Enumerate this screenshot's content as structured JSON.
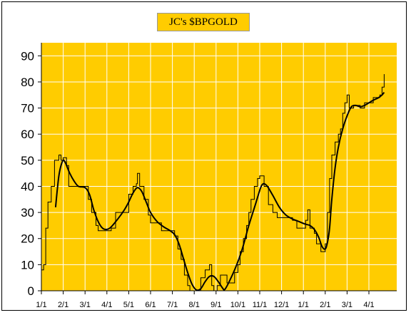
{
  "chart_data": {
    "type": "line",
    "title": "JC's $BPGOLD",
    "xlabel": "",
    "ylabel": "",
    "ylim": [
      0,
      95
    ],
    "yticks": [
      0,
      10,
      20,
      30,
      40,
      50,
      60,
      70,
      80,
      90
    ],
    "xticklabels": [
      "1/1",
      "2/1",
      "3/1",
      "4/1",
      "5/1",
      "6/1",
      "7/1",
      "8/1",
      "9/1",
      "10/1",
      "11/1",
      "12/1",
      "1/1",
      "2/1",
      "3/1",
      "4/1"
    ],
    "grid": true,
    "legend": "none",
    "series": [
      {
        "style": "step",
        "color": "#000000",
        "points": [
          [
            0.0,
            8
          ],
          [
            0.1,
            10
          ],
          [
            0.2,
            24
          ],
          [
            0.3,
            34
          ],
          [
            0.45,
            40
          ],
          [
            0.6,
            50
          ],
          [
            0.75,
            50
          ],
          [
            0.8,
            52
          ],
          [
            0.9,
            50
          ],
          [
            1.0,
            51
          ],
          [
            1.15,
            48
          ],
          [
            1.25,
            40
          ],
          [
            1.5,
            40
          ],
          [
            1.8,
            40
          ],
          [
            2.0,
            40
          ],
          [
            2.15,
            35
          ],
          [
            2.3,
            30
          ],
          [
            2.5,
            25
          ],
          [
            2.6,
            23
          ],
          [
            3.0,
            23
          ],
          [
            3.2,
            24
          ],
          [
            3.4,
            30
          ],
          [
            3.6,
            30
          ],
          [
            3.8,
            30
          ],
          [
            4.0,
            37
          ],
          [
            4.2,
            40
          ],
          [
            4.35,
            41
          ],
          [
            4.4,
            45
          ],
          [
            4.5,
            40
          ],
          [
            4.7,
            35
          ],
          [
            4.9,
            29
          ],
          [
            5.0,
            26
          ],
          [
            5.3,
            26
          ],
          [
            5.5,
            23
          ],
          [
            5.9,
            23
          ],
          [
            6.1,
            21
          ],
          [
            6.25,
            16
          ],
          [
            6.4,
            12
          ],
          [
            6.55,
            6
          ],
          [
            6.7,
            2
          ],
          [
            6.8,
            0
          ],
          [
            7.0,
            0
          ],
          [
            7.3,
            5
          ],
          [
            7.5,
            8
          ],
          [
            7.7,
            10
          ],
          [
            7.8,
            2
          ],
          [
            7.9,
            0
          ],
          [
            8.05,
            2
          ],
          [
            8.2,
            6
          ],
          [
            8.4,
            6
          ],
          [
            8.5,
            3
          ],
          [
            8.7,
            3
          ],
          [
            8.85,
            7
          ],
          [
            9.0,
            10
          ],
          [
            9.1,
            15
          ],
          [
            9.25,
            20
          ],
          [
            9.4,
            25
          ],
          [
            9.5,
            30
          ],
          [
            9.6,
            35
          ],
          [
            9.75,
            40
          ],
          [
            9.9,
            43
          ],
          [
            10.0,
            44
          ],
          [
            10.2,
            40
          ],
          [
            10.4,
            33
          ],
          [
            10.6,
            30
          ],
          [
            10.8,
            28
          ],
          [
            11.0,
            28
          ],
          [
            11.5,
            27
          ],
          [
            11.7,
            24
          ],
          [
            12.0,
            24
          ],
          [
            12.1,
            27
          ],
          [
            12.2,
            31
          ],
          [
            12.3,
            24
          ],
          [
            12.5,
            22
          ],
          [
            12.6,
            18
          ],
          [
            12.8,
            15
          ],
          [
            12.9,
            15
          ],
          [
            13.0,
            18
          ],
          [
            13.1,
            30
          ],
          [
            13.2,
            43
          ],
          [
            13.3,
            52
          ],
          [
            13.45,
            57
          ],
          [
            13.6,
            60
          ],
          [
            13.7,
            62
          ],
          [
            13.8,
            68
          ],
          [
            13.9,
            72
          ],
          [
            14.0,
            75
          ],
          [
            14.1,
            70
          ],
          [
            14.3,
            71
          ],
          [
            14.6,
            70
          ],
          [
            14.8,
            72
          ],
          [
            15.2,
            74
          ],
          [
            15.5,
            75
          ],
          [
            15.6,
            78
          ],
          [
            15.7,
            83
          ]
        ]
      },
      {
        "style": "smooth",
        "color": "#000000",
        "points": [
          [
            0.65,
            32
          ],
          [
            0.72,
            38
          ],
          [
            0.8,
            44
          ],
          [
            0.9,
            48
          ],
          [
            1.0,
            50
          ],
          [
            1.1,
            49
          ],
          [
            1.3,
            45
          ],
          [
            1.5,
            42
          ],
          [
            1.7,
            40
          ],
          [
            2.0,
            39.5
          ],
          [
            2.2,
            37
          ],
          [
            2.4,
            31
          ],
          [
            2.6,
            26.5
          ],
          [
            2.8,
            24
          ],
          [
            3.0,
            23.5
          ],
          [
            3.2,
            24.5
          ],
          [
            3.5,
            27.5
          ],
          [
            3.8,
            31
          ],
          [
            4.0,
            34
          ],
          [
            4.2,
            37.5
          ],
          [
            4.4,
            39.5
          ],
          [
            4.6,
            38
          ],
          [
            4.8,
            34
          ],
          [
            5.0,
            30
          ],
          [
            5.3,
            26.5
          ],
          [
            5.6,
            24.5
          ],
          [
            5.9,
            23
          ],
          [
            6.1,
            21.5
          ],
          [
            6.3,
            18
          ],
          [
            6.5,
            12.5
          ],
          [
            6.7,
            7
          ],
          [
            6.9,
            2.5
          ],
          [
            7.1,
            0.3
          ],
          [
            7.3,
            0.8
          ],
          [
            7.5,
            3.5
          ],
          [
            7.7,
            5.5
          ],
          [
            7.9,
            5.5
          ],
          [
            8.1,
            3.5
          ],
          [
            8.3,
            1
          ],
          [
            8.4,
            0.5
          ],
          [
            8.6,
            3.5
          ],
          [
            8.9,
            9
          ],
          [
            9.2,
            16
          ],
          [
            9.5,
            25
          ],
          [
            9.8,
            33
          ],
          [
            10.0,
            38.5
          ],
          [
            10.1,
            40.5
          ],
          [
            10.2,
            41
          ],
          [
            10.35,
            40
          ],
          [
            10.6,
            36.5
          ],
          [
            10.9,
            32
          ],
          [
            11.2,
            29
          ],
          [
            11.5,
            27.5
          ],
          [
            11.8,
            26.5
          ],
          [
            12.1,
            25.5
          ],
          [
            12.3,
            25
          ],
          [
            12.5,
            23.5
          ],
          [
            12.7,
            20.5
          ],
          [
            12.85,
            17
          ],
          [
            13.0,
            16
          ],
          [
            13.1,
            18.5
          ],
          [
            13.2,
            24
          ],
          [
            13.3,
            35
          ],
          [
            13.45,
            47
          ],
          [
            13.6,
            55
          ],
          [
            13.8,
            62
          ],
          [
            14.0,
            67
          ],
          [
            14.2,
            70.5
          ],
          [
            14.4,
            71
          ],
          [
            14.6,
            70.5
          ],
          [
            14.8,
            71
          ],
          [
            15.0,
            72
          ],
          [
            15.2,
            73
          ],
          [
            15.45,
            74
          ],
          [
            15.6,
            75
          ],
          [
            15.7,
            76
          ]
        ]
      }
    ]
  }
}
